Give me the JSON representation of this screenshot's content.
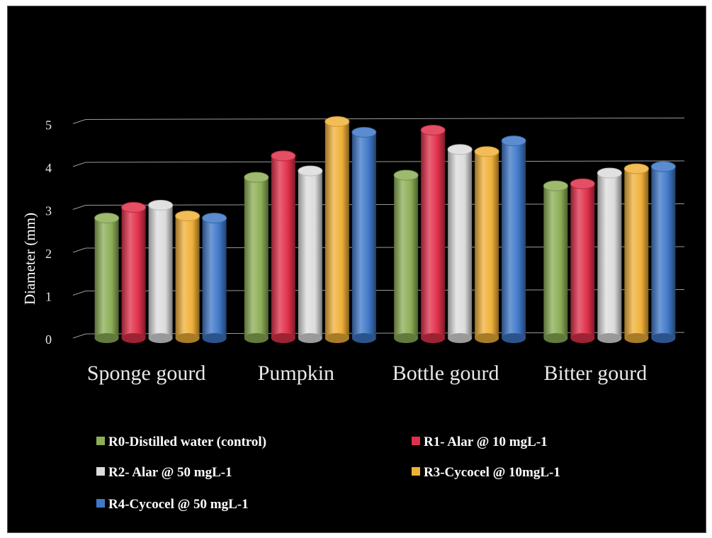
{
  "chart_data": {
    "type": "bar",
    "title": "",
    "xlabel": "",
    "ylabel": "Diameter (mm)",
    "ylim": [
      0,
      5
    ],
    "yticks": [
      "0",
      "1",
      "2",
      "3",
      "4",
      "5"
    ],
    "grid": true,
    "legend_position": "bottom",
    "categories": [
      "Sponge gourd",
      "Pumpkin",
      "Bottle gourd",
      "Bitter gourd"
    ],
    "series": [
      {
        "name": "R0-Distilled water (control)",
        "color": "#8cae56",
        "values": [
          2.7,
          3.65,
          3.7,
          3.45
        ]
      },
      {
        "name": "R1- Alar @ 10 mgL-1",
        "color": "#e0304a",
        "values": [
          2.95,
          4.15,
          4.75,
          3.5
        ]
      },
      {
        "name": "R2- Alar @ 50 mgL-1",
        "color": "#dcdcdc",
        "values": [
          3.0,
          3.8,
          4.3,
          3.75
        ]
      },
      {
        "name": "R3-Cycocel @ 10mgL-1",
        "color": "#f0b038",
        "values": [
          2.75,
          4.95,
          4.25,
          3.85
        ]
      },
      {
        "name": "R4-Cycocel @ 50 mgL-1",
        "color": "#3f78c8",
        "values": [
          2.7,
          4.7,
          4.5,
          3.9
        ]
      }
    ]
  }
}
